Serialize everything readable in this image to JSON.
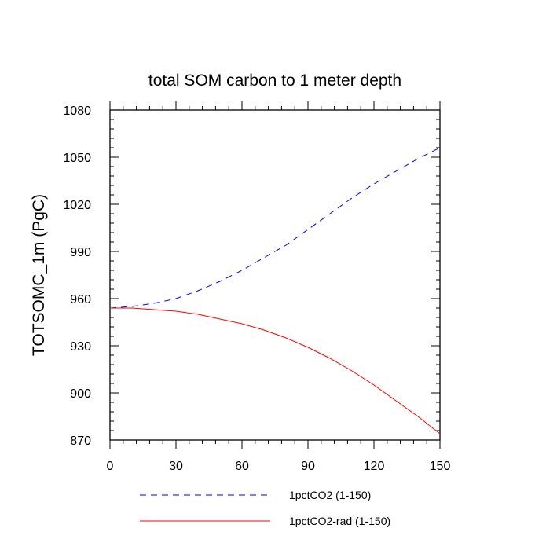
{
  "chart_data": {
    "type": "line",
    "title": "total SOM carbon to 1 meter depth",
    "xlabel": "",
    "ylabel": "TOTSOMC_1m  (PgC)",
    "xlim": [
      0,
      150
    ],
    "ylim": [
      870,
      1080
    ],
    "xticks": [
      0,
      30,
      60,
      90,
      120,
      150
    ],
    "yticks": [
      870,
      900,
      930,
      960,
      990,
      1020,
      1050,
      1080
    ],
    "grid": false,
    "legend": "bottom",
    "series": [
      {
        "name": "1pctCO2 (1-150)",
        "color": "#0000ff",
        "dash": "dashed",
        "x": [
          0,
          10,
          20,
          30,
          40,
          50,
          60,
          70,
          80,
          90,
          100,
          110,
          120,
          130,
          140,
          150
        ],
        "y": [
          954,
          955,
          957,
          960,
          965,
          971,
          978,
          986,
          994,
          1004,
          1014,
          1024,
          1033,
          1041,
          1049,
          1056
        ]
      },
      {
        "name": "1pctCO2-rad (1-150)",
        "color": "#ff0000",
        "dash": "solid",
        "x": [
          0,
          10,
          20,
          30,
          40,
          50,
          60,
          70,
          80,
          90,
          100,
          110,
          120,
          130,
          140,
          150
        ],
        "y": [
          954,
          954,
          953,
          952,
          950,
          947,
          944,
          940,
          935,
          929,
          922,
          914,
          905,
          895,
          885,
          874
        ]
      }
    ]
  }
}
